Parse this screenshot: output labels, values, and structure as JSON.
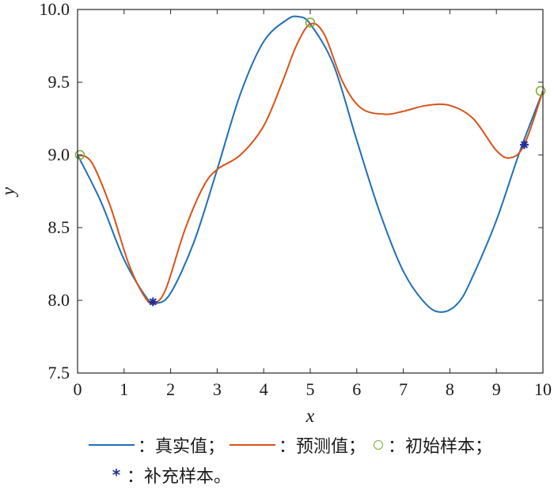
{
  "chart_data": {
    "type": "line",
    "xlabel": "x",
    "ylabel": "y",
    "xlim": [
      0,
      10
    ],
    "ylim": [
      7.5,
      10.0
    ],
    "xticks": [
      "0",
      "1",
      "2",
      "3",
      "4",
      "5",
      "6",
      "7",
      "8",
      "9",
      "10"
    ],
    "yticks": [
      "7.5",
      "8.0",
      "8.5",
      "9.0",
      "9.5",
      "10.0"
    ],
    "grid": false,
    "series": [
      {
        "name": "真实值",
        "color": "#1f6fb5",
        "x": [
          0,
          0.5,
          1.0,
          1.5,
          1.7,
          2.0,
          2.5,
          3.0,
          3.5,
          4.0,
          4.5,
          4.75,
          5.0,
          5.5,
          6.0,
          6.5,
          7.0,
          7.5,
          7.85,
          8.2,
          8.5,
          9.0,
          9.5,
          10.0
        ],
        "y": [
          9.0,
          8.68,
          8.28,
          8.01,
          7.98,
          8.05,
          8.4,
          8.9,
          9.42,
          9.78,
          9.93,
          9.95,
          9.9,
          9.62,
          9.1,
          8.6,
          8.2,
          7.97,
          7.92,
          7.99,
          8.17,
          8.55,
          9.02,
          9.44
        ]
      },
      {
        "name": "预测值",
        "color": "#d95319",
        "x": [
          0,
          0.3,
          0.7,
          1.1,
          1.45,
          1.65,
          1.9,
          2.3,
          2.7,
          3.0,
          3.5,
          4.0,
          4.4,
          4.7,
          5.0,
          5.3,
          5.7,
          6.1,
          6.6,
          7.0,
          7.5,
          8.0,
          8.5,
          9.0,
          9.3,
          9.6,
          10.0
        ],
        "y": [
          9.0,
          8.95,
          8.65,
          8.25,
          8.02,
          7.98,
          8.08,
          8.48,
          8.78,
          8.9,
          9.0,
          9.2,
          9.5,
          9.75,
          9.9,
          9.83,
          9.5,
          9.32,
          9.28,
          9.3,
          9.34,
          9.34,
          9.25,
          9.03,
          8.98,
          9.07,
          9.44
        ]
      }
    ],
    "markers": [
      {
        "name": "初始样本",
        "symbol": "circle",
        "color": "#77ac30",
        "x": [
          0.05,
          5.0,
          9.95
        ],
        "y": [
          9.0,
          9.91,
          9.44
        ]
      },
      {
        "name": "补充样本",
        "symbol": "star",
        "color": "#1f2e9c",
        "x": [
          1.62,
          9.6
        ],
        "y": [
          7.99,
          9.07
        ]
      }
    ]
  },
  "legend": {
    "true_label": "：真实值；",
    "pred_label": "：预测值；",
    "init_label": "：初始样本；",
    "supp_label": "：补充样本。",
    "star_symbol": "*"
  }
}
